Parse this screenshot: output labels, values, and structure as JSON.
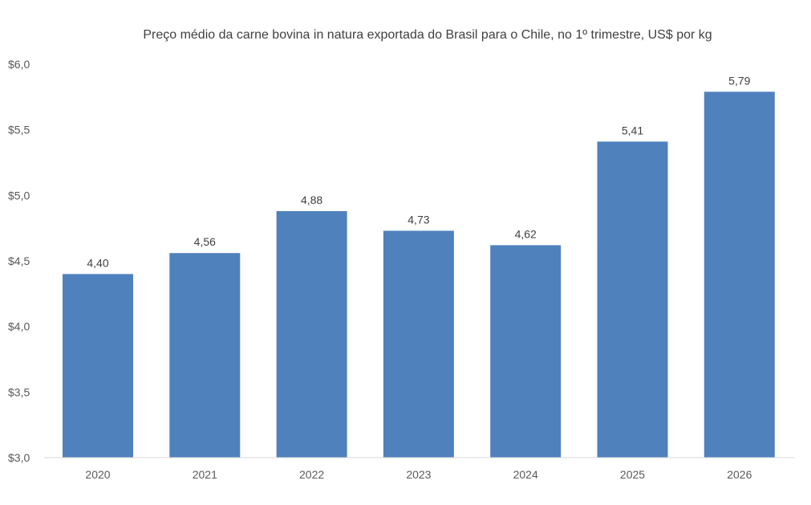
{
  "chart_data": {
    "type": "bar",
    "title": "Preço médio da carne bovina in natura exportada do Brasil para o Chile, no 1º trimestre, US$ por kg",
    "xlabel": "",
    "ylabel": "",
    "categories": [
      "2020",
      "2021",
      "2022",
      "2023",
      "2024",
      "2025",
      "2026"
    ],
    "values": [
      4.4,
      4.56,
      4.88,
      4.73,
      4.62,
      5.41,
      5.79
    ],
    "data_labels": [
      "4,40",
      "4,56",
      "4,88",
      "4,73",
      "4,62",
      "5,41",
      "5,79"
    ],
    "ylim": [
      3.0,
      6.0
    ],
    "yticks": [
      3.0,
      3.5,
      4.0,
      4.5,
      5.0,
      5.5,
      6.0
    ],
    "ytick_labels": [
      "$3,0",
      "$3,5",
      "$4,0",
      "$4,5",
      "$5,0",
      "$5,5",
      "$6,0"
    ],
    "grid": false,
    "legend": "none",
    "bar_color": "#4f81bd"
  }
}
